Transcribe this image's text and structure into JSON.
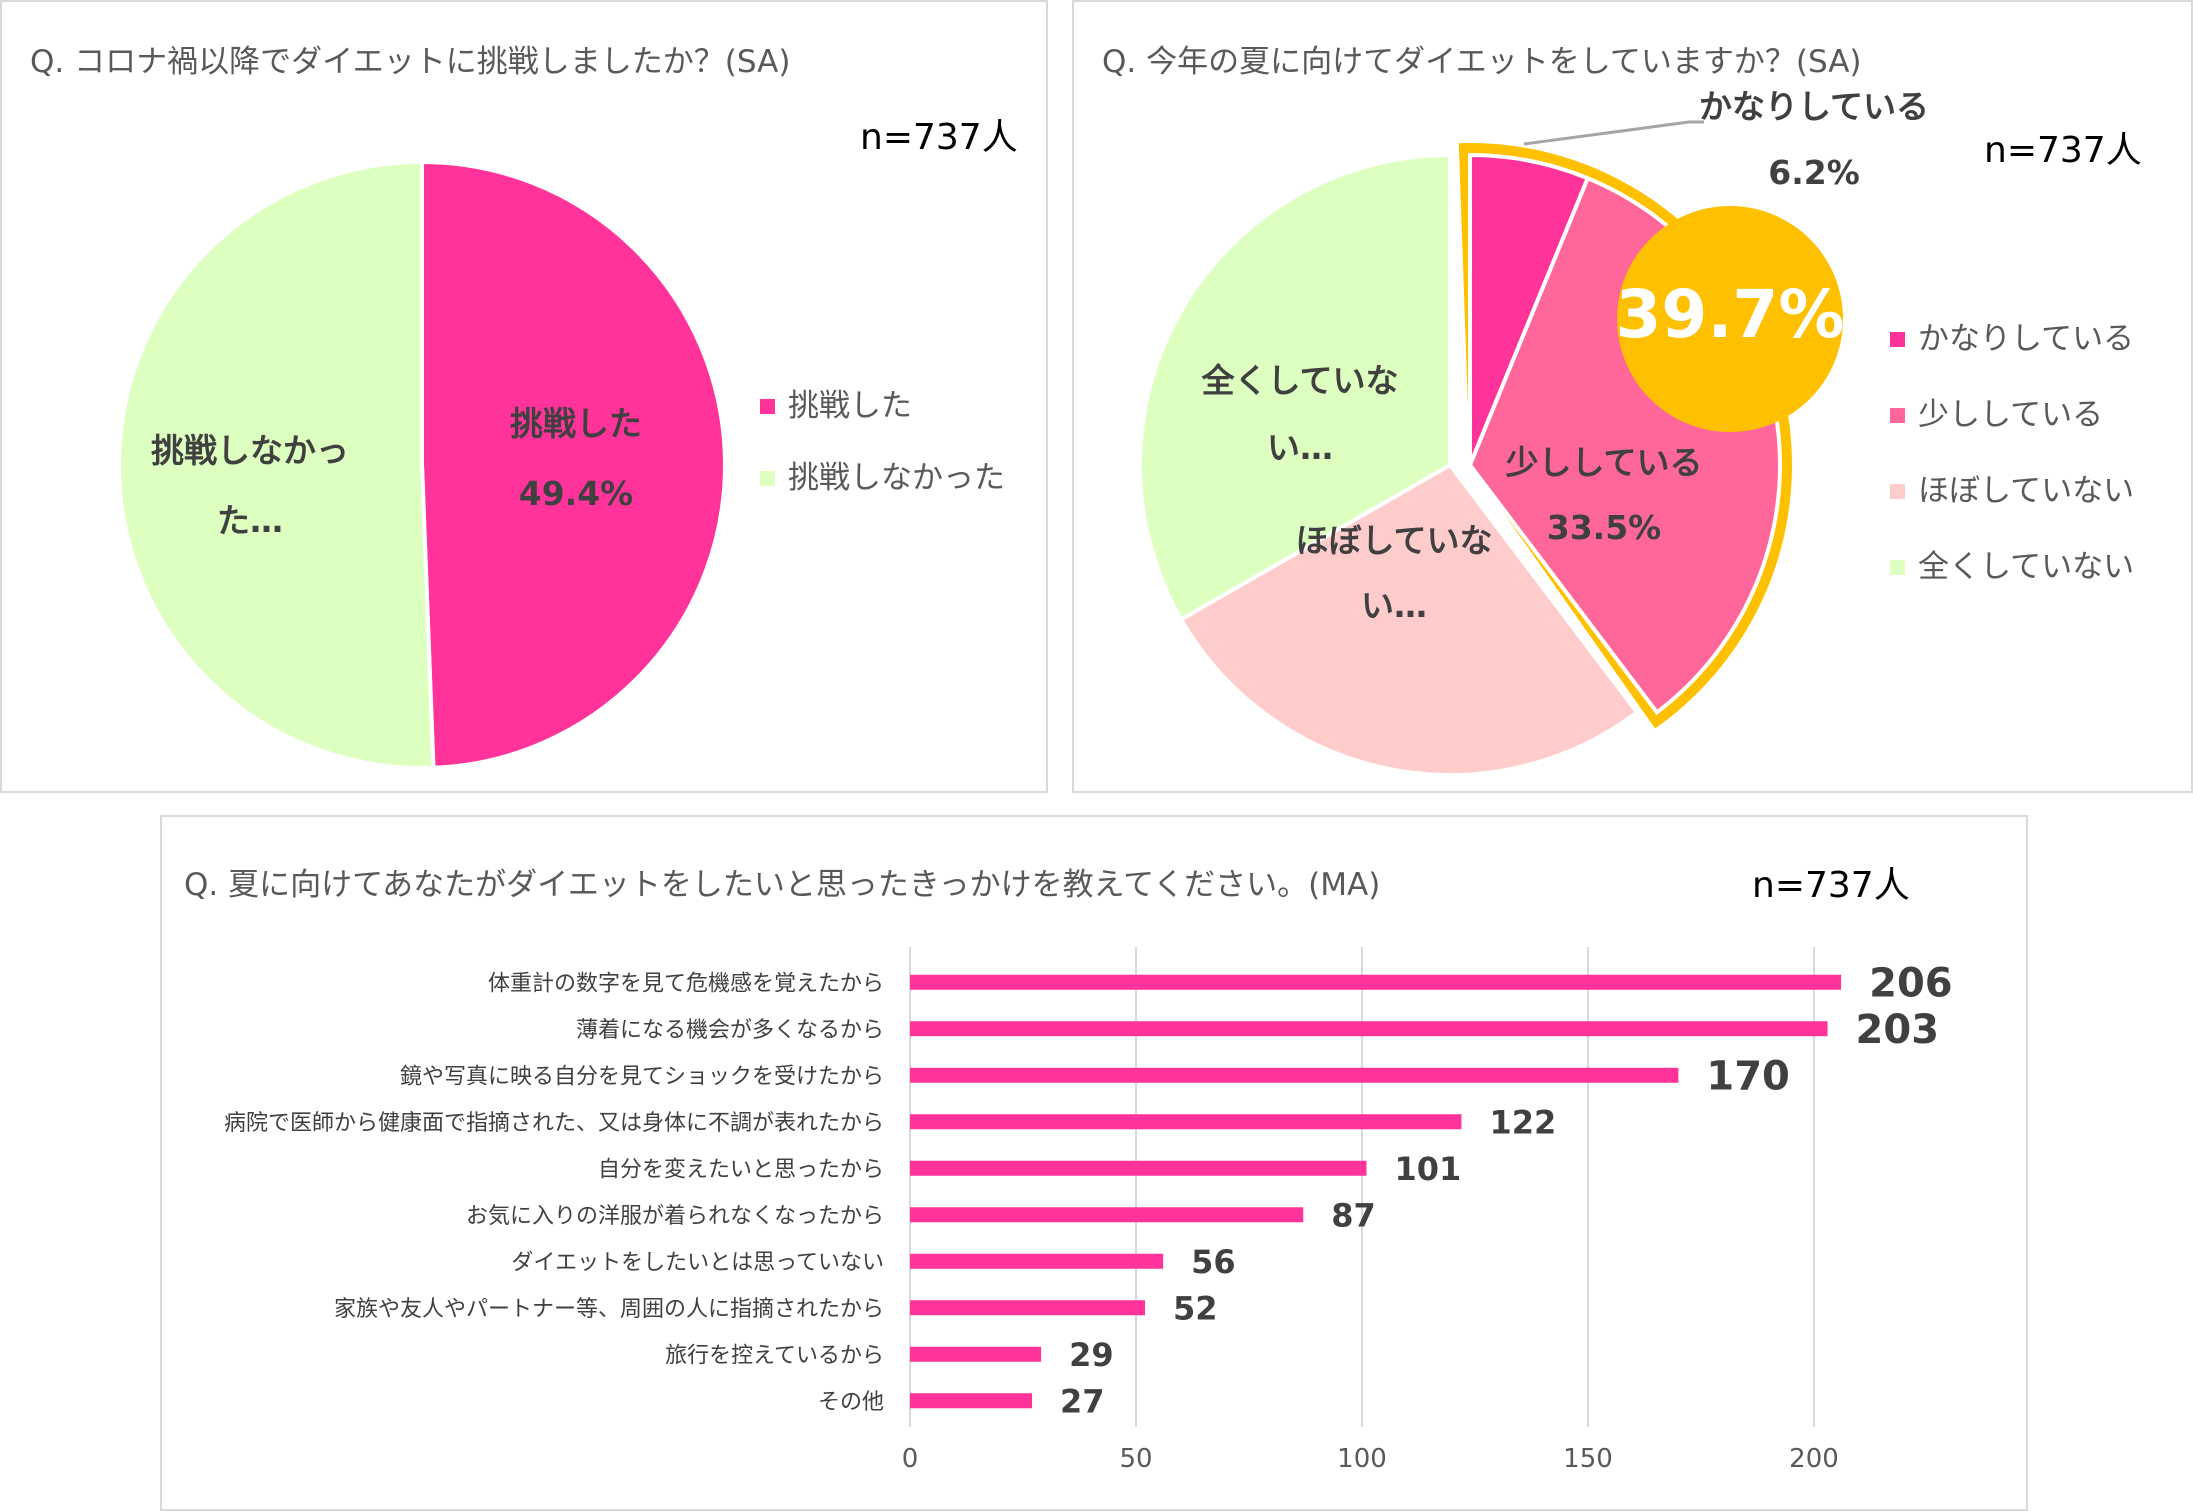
{
  "colors": {
    "challenged": "#ff3399",
    "not_challenged": "#ddffc0",
    "a_lot": "#ff3399",
    "a_little": "#ff6699",
    "hardly": "#ffcccc",
    "not_at_all": "#ddffc0",
    "highlight": "#ffc000",
    "bar": "#ff3399",
    "grid": "#d9d9d9"
  },
  "chart_data": [
    {
      "type": "pie",
      "title": "Q. コロナ禍以降でダイエットに挑戦しましたか？(SA)",
      "sample": "n=737人",
      "categories": [
        "挑戦した",
        "挑戦しなかった"
      ],
      "values": [
        49.4,
        50.6
      ],
      "slice_labels": [
        {
          "line1": "挑戦した",
          "line2": "49.4%"
        },
        {
          "line1": "挑戦しなかっ",
          "line2": "た…"
        }
      ],
      "legend": [
        "挑戦した",
        "挑戦しなかった"
      ]
    },
    {
      "type": "pie",
      "title": "Q. 今年の夏に向けてダイエットをしていますか？(SA)",
      "sample": "n=737人",
      "categories": [
        "かなりしている",
        "少ししている",
        "ほぼしていない",
        "全くしていない"
      ],
      "values": [
        6.2,
        33.5,
        27.0,
        33.3
      ],
      "slice_labels": [
        {
          "line1": "かなりしている",
          "line2": "6.2%"
        },
        {
          "line1": "少ししている",
          "line2": "33.5%"
        },
        {
          "line1": "ほぼしていな",
          "line2": "い…"
        },
        {
          "line1": "全くしていな",
          "line2": "い…"
        }
      ],
      "highlight_total": "39.7%",
      "legend": [
        "かなりしている",
        "少ししている",
        "ほぼしていない",
        "全くしていない"
      ]
    },
    {
      "type": "bar",
      "orientation": "horizontal",
      "title": "Q. 夏に向けてあなたがダイエットをしたいと思ったきっかけを教えてください。(MA)",
      "sample": "n=737人",
      "categories": [
        "体重計の数字を見て危機感を覚えたから",
        "薄着になる機会が多くなるから",
        "鏡や写真に映る自分を見てショックを受けたから",
        "病院で医師から健康面で指摘された、又は身体に不調が表れたから",
        "自分を変えたいと思ったから",
        "お気に入りの洋服が着られなくなったから",
        "ダイエットをしたいとは思っていない",
        "家族や友人やパートナー等、周囲の人に指摘されたから",
        "旅行を控えているから",
        "その他"
      ],
      "values": [
        206,
        203,
        170,
        122,
        101,
        87,
        56,
        52,
        29,
        27
      ],
      "value_labels": [
        "206",
        "203",
        "170",
        "122",
        "101",
        "87",
        "56",
        "52",
        "29",
        "27"
      ],
      "xlim": [
        0,
        200
      ],
      "xticks": [
        "0",
        "50",
        "100",
        "150",
        "200"
      ]
    }
  ]
}
